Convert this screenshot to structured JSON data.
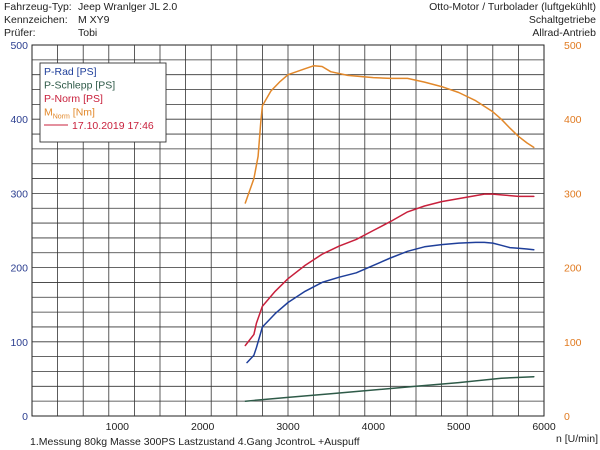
{
  "header": {
    "left": [
      {
        "label": "Fahrzeug-Typ:",
        "value": "Jeep Wranlger JL 2.0"
      },
      {
        "label": "Kennzeichen:",
        "value": "M XY9"
      },
      {
        "label": "Prüfer:",
        "value": "Tobi"
      }
    ],
    "right": [
      "Otto-Motor / Turbolader (luftgekühlt)",
      "Schaltgetriebe",
      "Allrad-Antrieb"
    ]
  },
  "footer": {
    "note": "1.Messung 80kg Masse 300PS Lastzustand 4.Gang JcontroL +Auspuff"
  },
  "chart_data": {
    "type": "line",
    "xlabel": "n [U/min]",
    "xlim": [
      0,
      6000
    ],
    "x_ticks": [
      0,
      1000,
      2000,
      3000,
      4000,
      5000,
      6000
    ],
    "y_left_lim": [
      0,
      500
    ],
    "y_left_ticks": [
      0,
      100,
      200,
      300,
      400,
      500
    ],
    "y_right_lim": [
      0,
      500
    ],
    "y_right_ticks": [
      0,
      100,
      200,
      300,
      400,
      500
    ],
    "grid": true,
    "legend_position": "top-left",
    "legend_date": "17.10.2019 17:46",
    "colors": {
      "p_rad": "#1f3f9a",
      "p_schlepp": "#2e5a48",
      "p_norm": "#c8203c",
      "m_norm": "#e2882a",
      "axis_left": "#2a3d8f",
      "axis_right": "#e07a20"
    },
    "series": [
      {
        "key": "p_rad",
        "name": "P-Rad [PS]",
        "axis": "left",
        "x": [
          2520,
          2600,
          2630,
          2700,
          2850,
          3000,
          3200,
          3400,
          3600,
          3800,
          4000,
          4200,
          4400,
          4600,
          4800,
          5000,
          5200,
          5300,
          5400,
          5500,
          5600,
          5700,
          5800,
          5880
        ],
        "y": [
          72,
          82,
          92,
          120,
          138,
          153,
          168,
          180,
          187,
          193,
          203,
          213,
          222,
          228,
          231,
          233,
          234,
          234,
          233,
          230,
          227,
          226,
          225,
          224
        ]
      },
      {
        "key": "p_schlepp",
        "name": "P-Schlepp [PS]",
        "axis": "left",
        "x": [
          2500,
          3000,
          3500,
          4000,
          4500,
          5000,
          5500,
          5880
        ],
        "y": [
          20,
          25,
          30,
          35,
          40,
          45,
          51,
          53
        ]
      },
      {
        "key": "p_norm",
        "name": "P-Norm [PS]",
        "axis": "left",
        "x": [
          2500,
          2600,
          2630,
          2700,
          2850,
          3000,
          3200,
          3400,
          3600,
          3800,
          4000,
          4200,
          4400,
          4600,
          4800,
          5000,
          5200,
          5300,
          5400,
          5500,
          5600,
          5700,
          5800,
          5880
        ],
        "y": [
          95,
          110,
          125,
          148,
          168,
          185,
          203,
          218,
          229,
          238,
          250,
          262,
          275,
          283,
          289,
          293,
          297,
          299,
          299,
          298,
          297,
          296,
          296,
          296
        ]
      },
      {
        "key": "m_norm",
        "name": "M",
        "name_sub": "Norm",
        "name_suffix": " [Nm]",
        "axis": "right",
        "x": [
          2500,
          2600,
          2650,
          2680,
          2700,
          2800,
          2900,
          3000,
          3200,
          3300,
          3400,
          3500,
          3700,
          4000,
          4200,
          4400,
          4600,
          4800,
          5000,
          5200,
          5400,
          5500,
          5600,
          5700,
          5800,
          5880
        ],
        "y": [
          287,
          320,
          350,
          395,
          418,
          438,
          450,
          460,
          468,
          472,
          471,
          464,
          459,
          456,
          455,
          455,
          450,
          444,
          436,
          425,
          410,
          400,
          388,
          377,
          368,
          362
        ]
      }
    ]
  }
}
